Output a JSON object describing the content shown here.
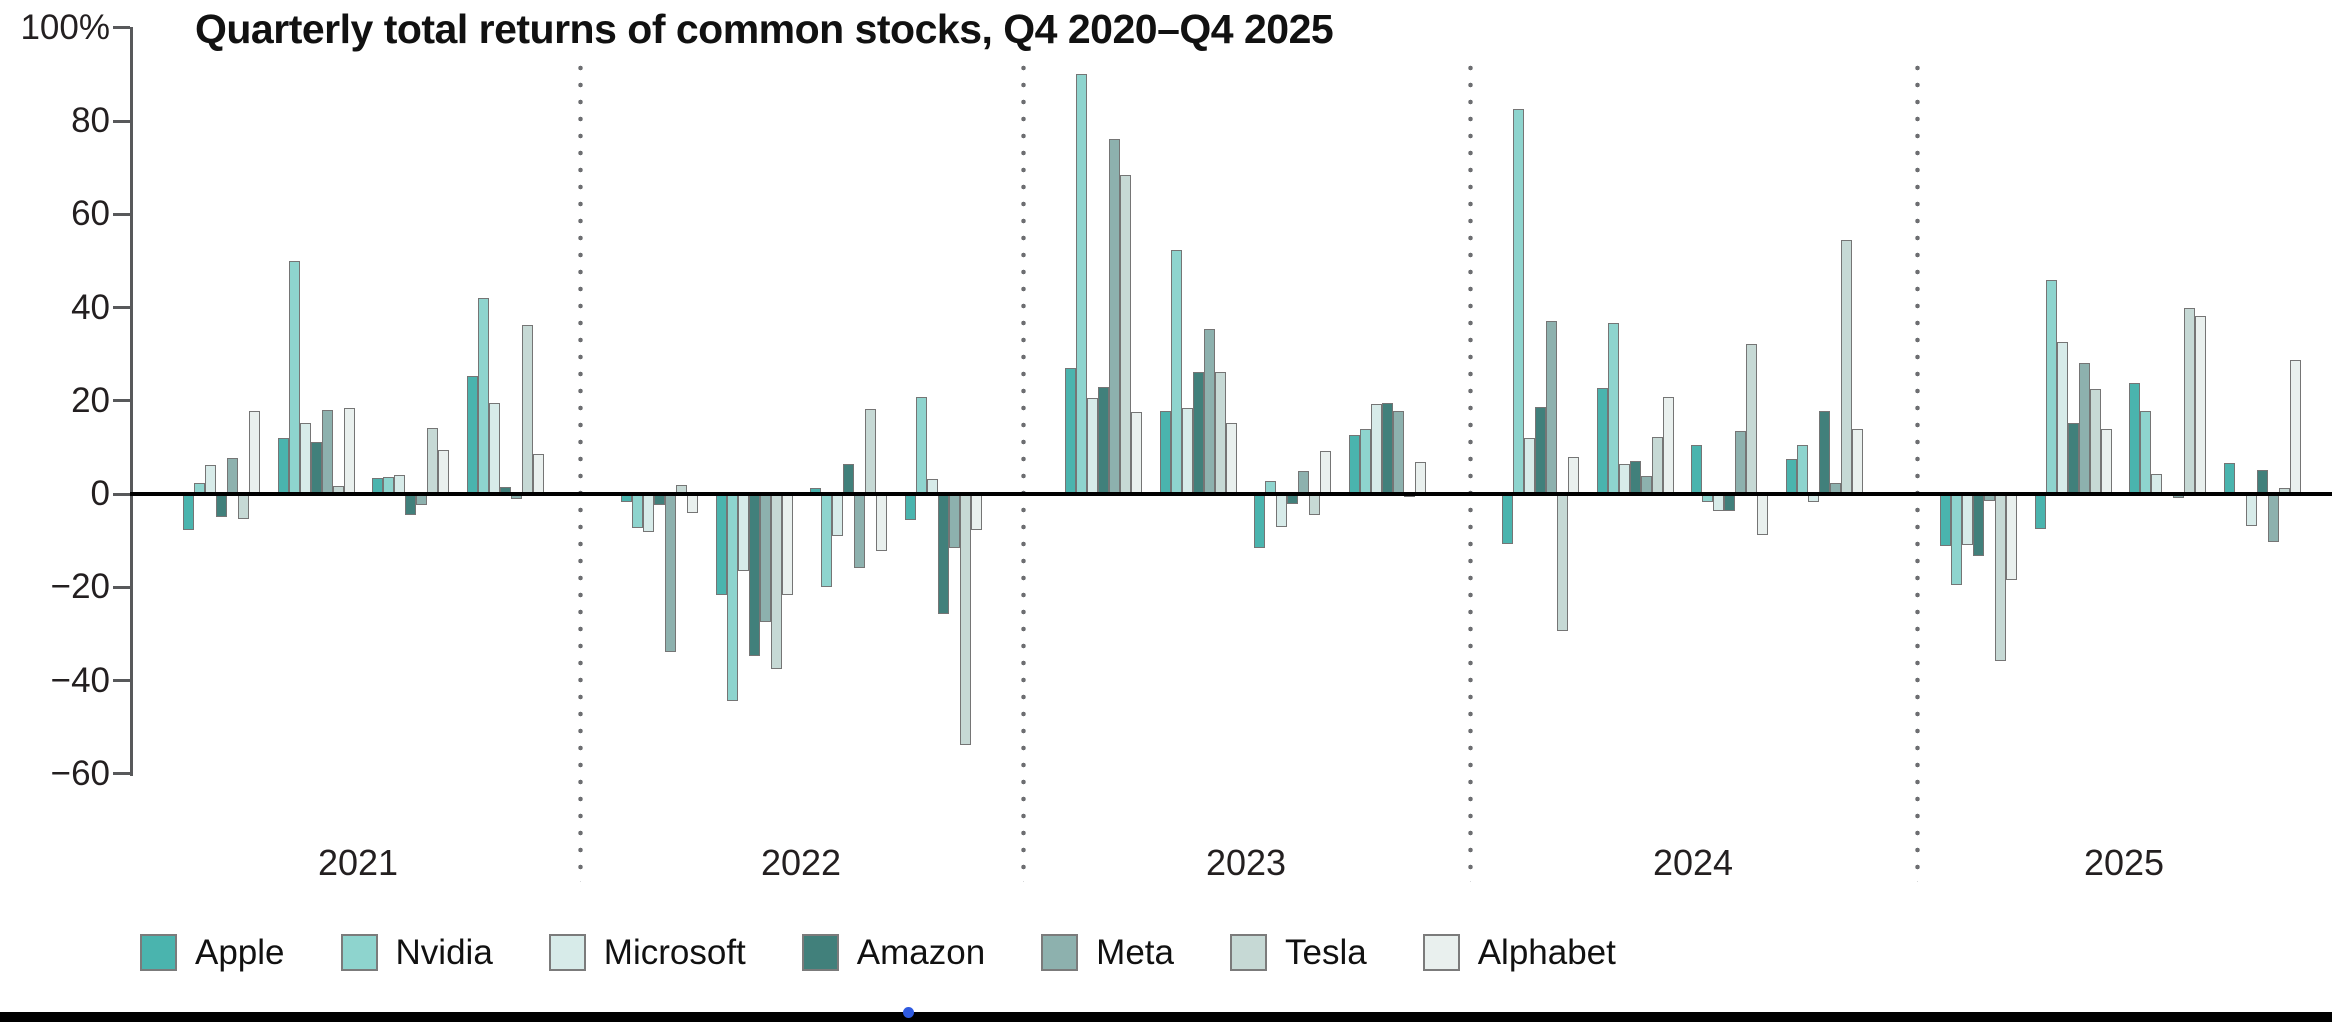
{
  "title": "Quarterly total returns of common stocks, Q4 2020–Q4 2025",
  "chart_data": {
    "type": "bar",
    "title": "Quarterly total returns of common stocks, Q4 2020–Q4 2025",
    "unit": "percent",
    "ylim": [
      -60,
      100
    ],
    "grid": false,
    "legend_position": "bottom",
    "y_axis_ticks": [
      {
        "label": "100%",
        "value": 100
      },
      {
        "label": "80",
        "value": 80
      },
      {
        "label": "60",
        "value": 60
      },
      {
        "label": "40",
        "value": 40
      },
      {
        "label": "20",
        "value": 20
      },
      {
        "label": "0",
        "value": 0
      },
      {
        "label": "−20",
        "value": -20
      },
      {
        "label": "−40",
        "value": -40
      },
      {
        "label": "−60",
        "value": -60
      }
    ],
    "x_year_labels": [
      "2021",
      "2022",
      "2023",
      "2024",
      "2025"
    ],
    "quarters": [
      "Q1 2021",
      "Q2 2021",
      "Q3 2021",
      "Q4 2021",
      "Q1 2022",
      "Q2 2022",
      "Q3 2022",
      "Q4 2022",
      "Q1 2023",
      "Q2 2023",
      "Q3 2023",
      "Q4 2023",
      "Q1 2024",
      "Q2 2024",
      "Q3 2024",
      "Q4 2024",
      "Q1 2025",
      "Q2 2025",
      "Q3 2025",
      "Q4 2025"
    ],
    "series": [
      {
        "name": "Apple",
        "color": "#4ab4ae",
        "values": [
          -7.8,
          12.0,
          3.5,
          25.4,
          -1.7,
          -21.6,
          1.2,
          -5.6,
          27.1,
          17.8,
          -11.6,
          12.6,
          -10.8,
          22.8,
          10.6,
          7.6,
          -11.2,
          -7.6,
          23.9,
          6.7
        ]
      },
      {
        "name": "Nvidia",
        "color": "#8ed4ce",
        "values": [
          2.3,
          49.9,
          3.6,
          42.0,
          -7.2,
          -44.4,
          -19.9,
          20.8,
          90.1,
          52.3,
          2.8,
          13.9,
          82.5,
          36.7,
          -1.7,
          10.6,
          -19.6,
          45.8,
          17.9,
          0.0
        ]
      },
      {
        "name": "Microsoft",
        "color": "#d7ebe9",
        "values": [
          6.3,
          15.2,
          4.0,
          19.5,
          -8.2,
          -16.6,
          -9.1,
          3.3,
          20.5,
          18.4,
          -7.1,
          19.3,
          12.0,
          6.4,
          -3.6,
          -1.8,
          -10.9,
          32.6,
          4.3,
          -6.8
        ]
      },
      {
        "name": "Amazon",
        "color": "#41807b",
        "values": [
          -5.0,
          11.2,
          -4.5,
          1.5,
          -2.4,
          -34.8,
          6.4,
          -25.7,
          23.0,
          26.2,
          -2.2,
          19.5,
          18.7,
          7.1,
          -3.6,
          17.7,
          -13.3,
          15.3,
          -0.3,
          5.2
        ]
      },
      {
        "name": "Meta",
        "color": "#8db1ae",
        "values": [
          7.8,
          18.1,
          -2.4,
          -1.0,
          -33.9,
          -27.5,
          -15.9,
          -11.5,
          76.1,
          35.4,
          5.0,
          17.7,
          37.2,
          3.9,
          13.6,
          2.4,
          -1.5,
          28.1,
          -0.8,
          -10.4
        ]
      },
      {
        "name": "Tesla",
        "color": "#c6d9d5",
        "values": [
          -5.3,
          1.8,
          14.2,
          36.3,
          2.0,
          -37.5,
          18.2,
          -53.8,
          68.4,
          26.2,
          -4.4,
          -0.7,
          -29.3,
          12.3,
          32.2,
          54.4,
          -35.8,
          22.6,
          39.9,
          1.2
        ]
      },
      {
        "name": "Alphabet",
        "color": "#e9f0ee",
        "values": [
          17.7,
          18.4,
          9.5,
          8.6,
          -4.0,
          -21.6,
          -12.3,
          -7.7,
          17.5,
          15.3,
          9.3,
          6.8,
          8.0,
          20.8,
          -8.8,
          14.0,
          -18.4,
          13.9,
          38.1,
          28.7
        ]
      }
    ]
  },
  "page_chrome": {
    "drag_indicator_color": "#2f5ae0",
    "bottom_border_color": "#000000"
  }
}
